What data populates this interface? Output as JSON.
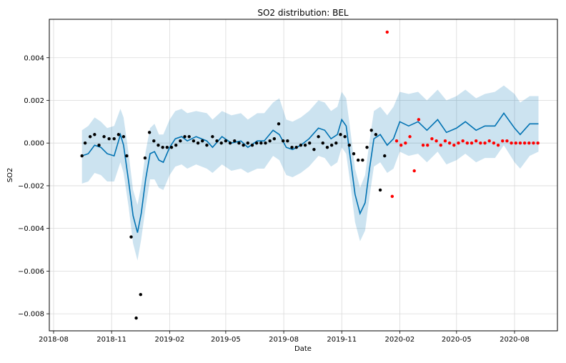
{
  "chart_data": {
    "type": "scatter",
    "title": "SO2 distribution: BEL",
    "xlabel": "Date",
    "ylabel": "SO2",
    "x_tick_labels": [
      "2018-08",
      "2018-11",
      "2019-02",
      "2019-05",
      "2019-08",
      "2019-11",
      "2020-02",
      "2020-05",
      "2020-08"
    ],
    "y_tick_values": [
      -0.008,
      -0.006,
      -0.004,
      -0.002,
      0.0,
      0.002,
      0.004
    ],
    "y_tick_labels": [
      "−0.008",
      "−0.006",
      "−0.004",
      "−0.002",
      "0.000",
      "0.002",
      "0.004"
    ],
    "ylim": [
      -0.0088,
      0.0058
    ],
    "grid": true,
    "colors": {
      "forecast_line": "#0072B2",
      "uncertainty_band": "#0072B2",
      "observed_points": "#000000",
      "anomaly_points": "#ff0000"
    },
    "forecast": [
      {
        "x": "2018-09-15",
        "yhat": -0.0006,
        "lower": -0.0019,
        "upper": 0.0006
      },
      {
        "x": "2018-09-25",
        "yhat": -0.0005,
        "lower": -0.0018,
        "upper": 0.0008
      },
      {
        "x": "2018-10-05",
        "yhat": -0.0001,
        "lower": -0.0014,
        "upper": 0.0012
      },
      {
        "x": "2018-10-15",
        "yhat": -0.0002,
        "lower": -0.0015,
        "upper": 0.001
      },
      {
        "x": "2018-10-25",
        "yhat": -0.0005,
        "lower": -0.0018,
        "upper": 0.0007
      },
      {
        "x": "2018-11-05",
        "yhat": -0.0006,
        "lower": -0.0018,
        "upper": 0.0008
      },
      {
        "x": "2018-11-15",
        "yhat": 0.0004,
        "lower": -0.0009,
        "upper": 0.0016
      },
      {
        "x": "2018-11-20",
        "yhat": -0.0001,
        "lower": -0.0014,
        "upper": 0.0012
      },
      {
        "x": "2018-11-28",
        "yhat": -0.0018,
        "lower": -0.003,
        "upper": -0.0005
      },
      {
        "x": "2018-12-05",
        "yhat": -0.0034,
        "lower": -0.0047,
        "upper": -0.0022
      },
      {
        "x": "2018-12-12",
        "yhat": -0.0042,
        "lower": -0.0055,
        "upper": -0.0029
      },
      {
        "x": "2018-12-18",
        "yhat": -0.0033,
        "lower": -0.0045,
        "upper": -0.002
      },
      {
        "x": "2018-12-25",
        "yhat": -0.0017,
        "lower": -0.003,
        "upper": -0.0004
      },
      {
        "x": "2019-01-01",
        "yhat": -0.0005,
        "lower": -0.0017,
        "upper": 0.0007
      },
      {
        "x": "2019-01-08",
        "yhat": -0.0004,
        "lower": -0.0017,
        "upper": 0.0009
      },
      {
        "x": "2019-01-15",
        "yhat": -0.0008,
        "lower": -0.0021,
        "upper": 0.0004
      },
      {
        "x": "2019-01-22",
        "yhat": -0.0009,
        "lower": -0.0022,
        "upper": 0.0004
      },
      {
        "x": "2019-02-01",
        "yhat": -0.0002,
        "lower": -0.0015,
        "upper": 0.0011
      },
      {
        "x": "2019-02-10",
        "yhat": 0.0002,
        "lower": -0.0011,
        "upper": 0.0015
      },
      {
        "x": "2019-02-20",
        "yhat": 0.0003,
        "lower": -0.001,
        "upper": 0.0016
      },
      {
        "x": "2019-03-01",
        "yhat": 0.0001,
        "lower": -0.0012,
        "upper": 0.0014
      },
      {
        "x": "2019-03-15",
        "yhat": 0.0003,
        "lower": -0.001,
        "upper": 0.0015
      },
      {
        "x": "2019-04-01",
        "yhat": 0.0001,
        "lower": -0.0012,
        "upper": 0.0014
      },
      {
        "x": "2019-04-10",
        "yhat": -0.0002,
        "lower": -0.0014,
        "upper": 0.0011
      },
      {
        "x": "2019-04-25",
        "yhat": 0.0003,
        "lower": -0.001,
        "upper": 0.0015
      },
      {
        "x": "2019-05-10",
        "yhat": 0.0,
        "lower": -0.0013,
        "upper": 0.0013
      },
      {
        "x": "2019-05-25",
        "yhat": 0.0001,
        "lower": -0.0012,
        "upper": 0.0014
      },
      {
        "x": "2019-06-05",
        "yhat": -0.0002,
        "lower": -0.0014,
        "upper": 0.0011
      },
      {
        "x": "2019-06-20",
        "yhat": 0.0001,
        "lower": -0.0012,
        "upper": 0.0014
      },
      {
        "x": "2019-07-01",
        "yhat": 0.0001,
        "lower": -0.0012,
        "upper": 0.0014
      },
      {
        "x": "2019-07-15",
        "yhat": 0.0006,
        "lower": -0.0006,
        "upper": 0.0019
      },
      {
        "x": "2019-07-25",
        "yhat": 0.0004,
        "lower": -0.0008,
        "upper": 0.0021
      },
      {
        "x": "2019-08-05",
        "yhat": -0.0002,
        "lower": -0.0015,
        "upper": 0.0011
      },
      {
        "x": "2019-08-15",
        "yhat": -0.0003,
        "lower": -0.0016,
        "upper": 0.001
      },
      {
        "x": "2019-08-28",
        "yhat": -0.0001,
        "lower": -0.0014,
        "upper": 0.0012
      },
      {
        "x": "2019-09-10",
        "yhat": 0.0002,
        "lower": -0.0011,
        "upper": 0.0015
      },
      {
        "x": "2019-09-25",
        "yhat": 0.0007,
        "lower": -0.0006,
        "upper": 0.002
      },
      {
        "x": "2019-10-05",
        "yhat": 0.0006,
        "lower": -0.0007,
        "upper": 0.0019
      },
      {
        "x": "2019-10-15",
        "yhat": 0.0002,
        "lower": -0.0011,
        "upper": 0.0015
      },
      {
        "x": "2019-10-25",
        "yhat": 0.0004,
        "lower": -0.0009,
        "upper": 0.0017
      },
      {
        "x": "2019-11-01",
        "yhat": 0.0011,
        "lower": -0.0002,
        "upper": 0.0024
      },
      {
        "x": "2019-11-08",
        "yhat": 0.0008,
        "lower": -0.0005,
        "upper": 0.0021
      },
      {
        "x": "2019-11-15",
        "yhat": -0.0008,
        "lower": -0.002,
        "upper": 0.0005
      },
      {
        "x": "2019-11-22",
        "yhat": -0.0024,
        "lower": -0.0037,
        "upper": -0.0012
      },
      {
        "x": "2019-11-30",
        "yhat": -0.0033,
        "lower": -0.0046,
        "upper": -0.0021
      },
      {
        "x": "2019-12-08",
        "yhat": -0.0028,
        "lower": -0.0041,
        "upper": -0.0015
      },
      {
        "x": "2019-12-15",
        "yhat": -0.0012,
        "lower": -0.0025,
        "upper": 0.0001
      },
      {
        "x": "2019-12-22",
        "yhat": 0.0002,
        "lower": -0.0011,
        "upper": 0.0015
      },
      {
        "x": "2020-01-01",
        "yhat": 0.0004,
        "lower": -0.0009,
        "upper": 0.0017
      },
      {
        "x": "2020-01-12",
        "yhat": -0.0001,
        "lower": -0.0014,
        "upper": 0.0013
      },
      {
        "x": "2020-01-22",
        "yhat": 0.0002,
        "lower": -0.0012,
        "upper": 0.0017
      },
      {
        "x": "2020-02-01",
        "yhat": 0.001,
        "lower": -0.0004,
        "upper": 0.0024
      },
      {
        "x": "2020-02-15",
        "yhat": 0.0008,
        "lower": -0.0006,
        "upper": 0.0023
      },
      {
        "x": "2020-03-01",
        "yhat": 0.001,
        "lower": -0.0005,
        "upper": 0.0024
      },
      {
        "x": "2020-03-15",
        "yhat": 0.0006,
        "lower": -0.0009,
        "upper": 0.002
      },
      {
        "x": "2020-04-01",
        "yhat": 0.0011,
        "lower": -0.0004,
        "upper": 0.0025
      },
      {
        "x": "2020-04-15",
        "yhat": 0.0005,
        "lower": -0.001,
        "upper": 0.002
      },
      {
        "x": "2020-05-01",
        "yhat": 0.0007,
        "lower": -0.0008,
        "upper": 0.0022
      },
      {
        "x": "2020-05-15",
        "yhat": 0.001,
        "lower": -0.0005,
        "upper": 0.0025
      },
      {
        "x": "2020-06-01",
        "yhat": 0.0006,
        "lower": -0.0009,
        "upper": 0.0021
      },
      {
        "x": "2020-06-15",
        "yhat": 0.0008,
        "lower": -0.0007,
        "upper": 0.0023
      },
      {
        "x": "2020-07-01",
        "yhat": 0.0008,
        "lower": -0.0007,
        "upper": 0.0024
      },
      {
        "x": "2020-07-15",
        "yhat": 0.0014,
        "lower": -0.0001,
        "upper": 0.0027
      },
      {
        "x": "2020-08-01",
        "yhat": 0.0007,
        "lower": -0.0009,
        "upper": 0.0023
      },
      {
        "x": "2020-08-10",
        "yhat": 0.0004,
        "lower": -0.0012,
        "upper": 0.0019
      },
      {
        "x": "2020-08-25",
        "yhat": 0.0009,
        "lower": -0.0006,
        "upper": 0.0022
      },
      {
        "x": "2020-09-08",
        "yhat": 0.0009,
        "lower": -0.0004,
        "upper": 0.0022
      }
    ],
    "observed": [
      {
        "x": "2018-09-15",
        "y": -0.0006
      },
      {
        "x": "2018-09-20",
        "y": 0.0
      },
      {
        "x": "2018-09-28",
        "y": 0.0003
      },
      {
        "x": "2018-10-05",
        "y": 0.0004
      },
      {
        "x": "2018-10-12",
        "y": -0.0001
      },
      {
        "x": "2018-10-20",
        "y": 0.0003
      },
      {
        "x": "2018-10-28",
        "y": 0.0002
      },
      {
        "x": "2018-11-05",
        "y": 0.0002
      },
      {
        "x": "2018-11-12",
        "y": 0.0004
      },
      {
        "x": "2018-11-20",
        "y": 0.0003
      },
      {
        "x": "2018-11-25",
        "y": -0.0006
      },
      {
        "x": "2018-12-02",
        "y": -0.0044
      },
      {
        "x": "2018-12-10",
        "y": -0.0082
      },
      {
        "x": "2018-12-17",
        "y": -0.0071
      },
      {
        "x": "2018-12-24",
        "y": -0.0007
      },
      {
        "x": "2018-12-31",
        "y": 0.0005
      },
      {
        "x": "2019-01-07",
        "y": 0.0001
      },
      {
        "x": "2019-01-14",
        "y": -0.0001
      },
      {
        "x": "2019-01-21",
        "y": -0.0002
      },
      {
        "x": "2019-01-28",
        "y": -0.0002
      },
      {
        "x": "2019-02-04",
        "y": -0.0002
      },
      {
        "x": "2019-02-11",
        "y": -0.0001
      },
      {
        "x": "2019-02-18",
        "y": 0.0001
      },
      {
        "x": "2019-02-25",
        "y": 0.0003
      },
      {
        "x": "2019-03-04",
        "y": 0.0003
      },
      {
        "x": "2019-03-11",
        "y": 0.0001
      },
      {
        "x": "2019-03-18",
        "y": -0.0
      },
      {
        "x": "2019-03-25",
        "y": 0.0001
      },
      {
        "x": "2019-04-01",
        "y": -0.0001
      },
      {
        "x": "2019-04-10",
        "y": 0.0003
      },
      {
        "x": "2019-04-17",
        "y": 0.0001
      },
      {
        "x": "2019-04-24",
        "y": 0.0
      },
      {
        "x": "2019-05-01",
        "y": 0.0001
      },
      {
        "x": "2019-05-08",
        "y": -0.0
      },
      {
        "x": "2019-05-15",
        "y": 0.0001
      },
      {
        "x": "2019-05-22",
        "y": -0.0
      },
      {
        "x": "2019-05-29",
        "y": -0.0001
      },
      {
        "x": "2019-06-05",
        "y": 0.0
      },
      {
        "x": "2019-06-12",
        "y": -0.0001
      },
      {
        "x": "2019-06-19",
        "y": 0.0
      },
      {
        "x": "2019-06-26",
        "y": 0.0
      },
      {
        "x": "2019-07-03",
        "y": 0.0
      },
      {
        "x": "2019-07-10",
        "y": 0.0001
      },
      {
        "x": "2019-07-17",
        "y": 0.0002
      },
      {
        "x": "2019-07-24",
        "y": 0.0009
      },
      {
        "x": "2019-07-31",
        "y": 0.0001
      },
      {
        "x": "2019-08-07",
        "y": 0.0001
      },
      {
        "x": "2019-08-14",
        "y": -0.0002
      },
      {
        "x": "2019-08-21",
        "y": -0.0002
      },
      {
        "x": "2019-08-28",
        "y": -0.0001
      },
      {
        "x": "2019-09-04",
        "y": -0.0001
      },
      {
        "x": "2019-09-11",
        "y": 0.0
      },
      {
        "x": "2019-09-18",
        "y": -0.0003
      },
      {
        "x": "2019-09-25",
        "y": 0.0003
      },
      {
        "x": "2019-10-02",
        "y": 0.0
      },
      {
        "x": "2019-10-09",
        "y": -0.0002
      },
      {
        "x": "2019-10-16",
        "y": -0.0001
      },
      {
        "x": "2019-10-23",
        "y": 0.0
      },
      {
        "x": "2019-10-30",
        "y": 0.0004
      },
      {
        "x": "2019-11-06",
        "y": 0.0003
      },
      {
        "x": "2019-11-13",
        "y": -0.0001
      },
      {
        "x": "2019-11-20",
        "y": -0.0005
      },
      {
        "x": "2019-11-27",
        "y": -0.0008
      },
      {
        "x": "2019-12-04",
        "y": -0.0008
      },
      {
        "x": "2019-12-11",
        "y": -0.0002
      },
      {
        "x": "2019-12-18",
        "y": 0.0006
      },
      {
        "x": "2019-12-25",
        "y": 0.0004
      },
      {
        "x": "2020-01-01",
        "y": -0.0022
      },
      {
        "x": "2020-01-08",
        "y": -0.0006
      }
    ],
    "anomalies": [
      {
        "x": "2020-01-12",
        "y": 0.0052
      },
      {
        "x": "2020-01-20",
        "y": -0.0025
      },
      {
        "x": "2020-01-27",
        "y": 0.0001
      },
      {
        "x": "2020-02-03",
        "y": -0.0001
      },
      {
        "x": "2020-02-10",
        "y": -0.0
      },
      {
        "x": "2020-02-17",
        "y": 0.0003
      },
      {
        "x": "2020-02-24",
        "y": -0.0013
      },
      {
        "x": "2020-03-02",
        "y": 0.0011
      },
      {
        "x": "2020-03-09",
        "y": -0.0001
      },
      {
        "x": "2020-03-16",
        "y": -0.0001
      },
      {
        "x": "2020-03-23",
        "y": 0.0002
      },
      {
        "x": "2020-03-30",
        "y": 0.0001
      },
      {
        "x": "2020-04-06",
        "y": -0.0001
      },
      {
        "x": "2020-04-13",
        "y": 0.0001
      },
      {
        "x": "2020-04-20",
        "y": -0.0
      },
      {
        "x": "2020-04-27",
        "y": -0.0001
      },
      {
        "x": "2020-05-04",
        "y": -0.0
      },
      {
        "x": "2020-05-11",
        "y": 0.0001
      },
      {
        "x": "2020-05-18",
        "y": 0.0
      },
      {
        "x": "2020-05-25",
        "y": 0.0
      },
      {
        "x": "2020-06-01",
        "y": 0.0001
      },
      {
        "x": "2020-06-08",
        "y": -0.0
      },
      {
        "x": "2020-06-15",
        "y": 0.0
      },
      {
        "x": "2020-06-22",
        "y": 0.0001
      },
      {
        "x": "2020-06-29",
        "y": -0.0
      },
      {
        "x": "2020-07-06",
        "y": -0.0001
      },
      {
        "x": "2020-07-13",
        "y": 0.0001
      },
      {
        "x": "2020-07-20",
        "y": 0.0001
      },
      {
        "x": "2020-07-27",
        "y": -0.0
      },
      {
        "x": "2020-08-03",
        "y": -0.0
      },
      {
        "x": "2020-08-10",
        "y": 0.0
      },
      {
        "x": "2020-08-17",
        "y": 0.0
      },
      {
        "x": "2020-08-24",
        "y": -0.0
      },
      {
        "x": "2020-08-31",
        "y": 0.0
      },
      {
        "x": "2020-09-07",
        "y": 0.0
      }
    ]
  }
}
